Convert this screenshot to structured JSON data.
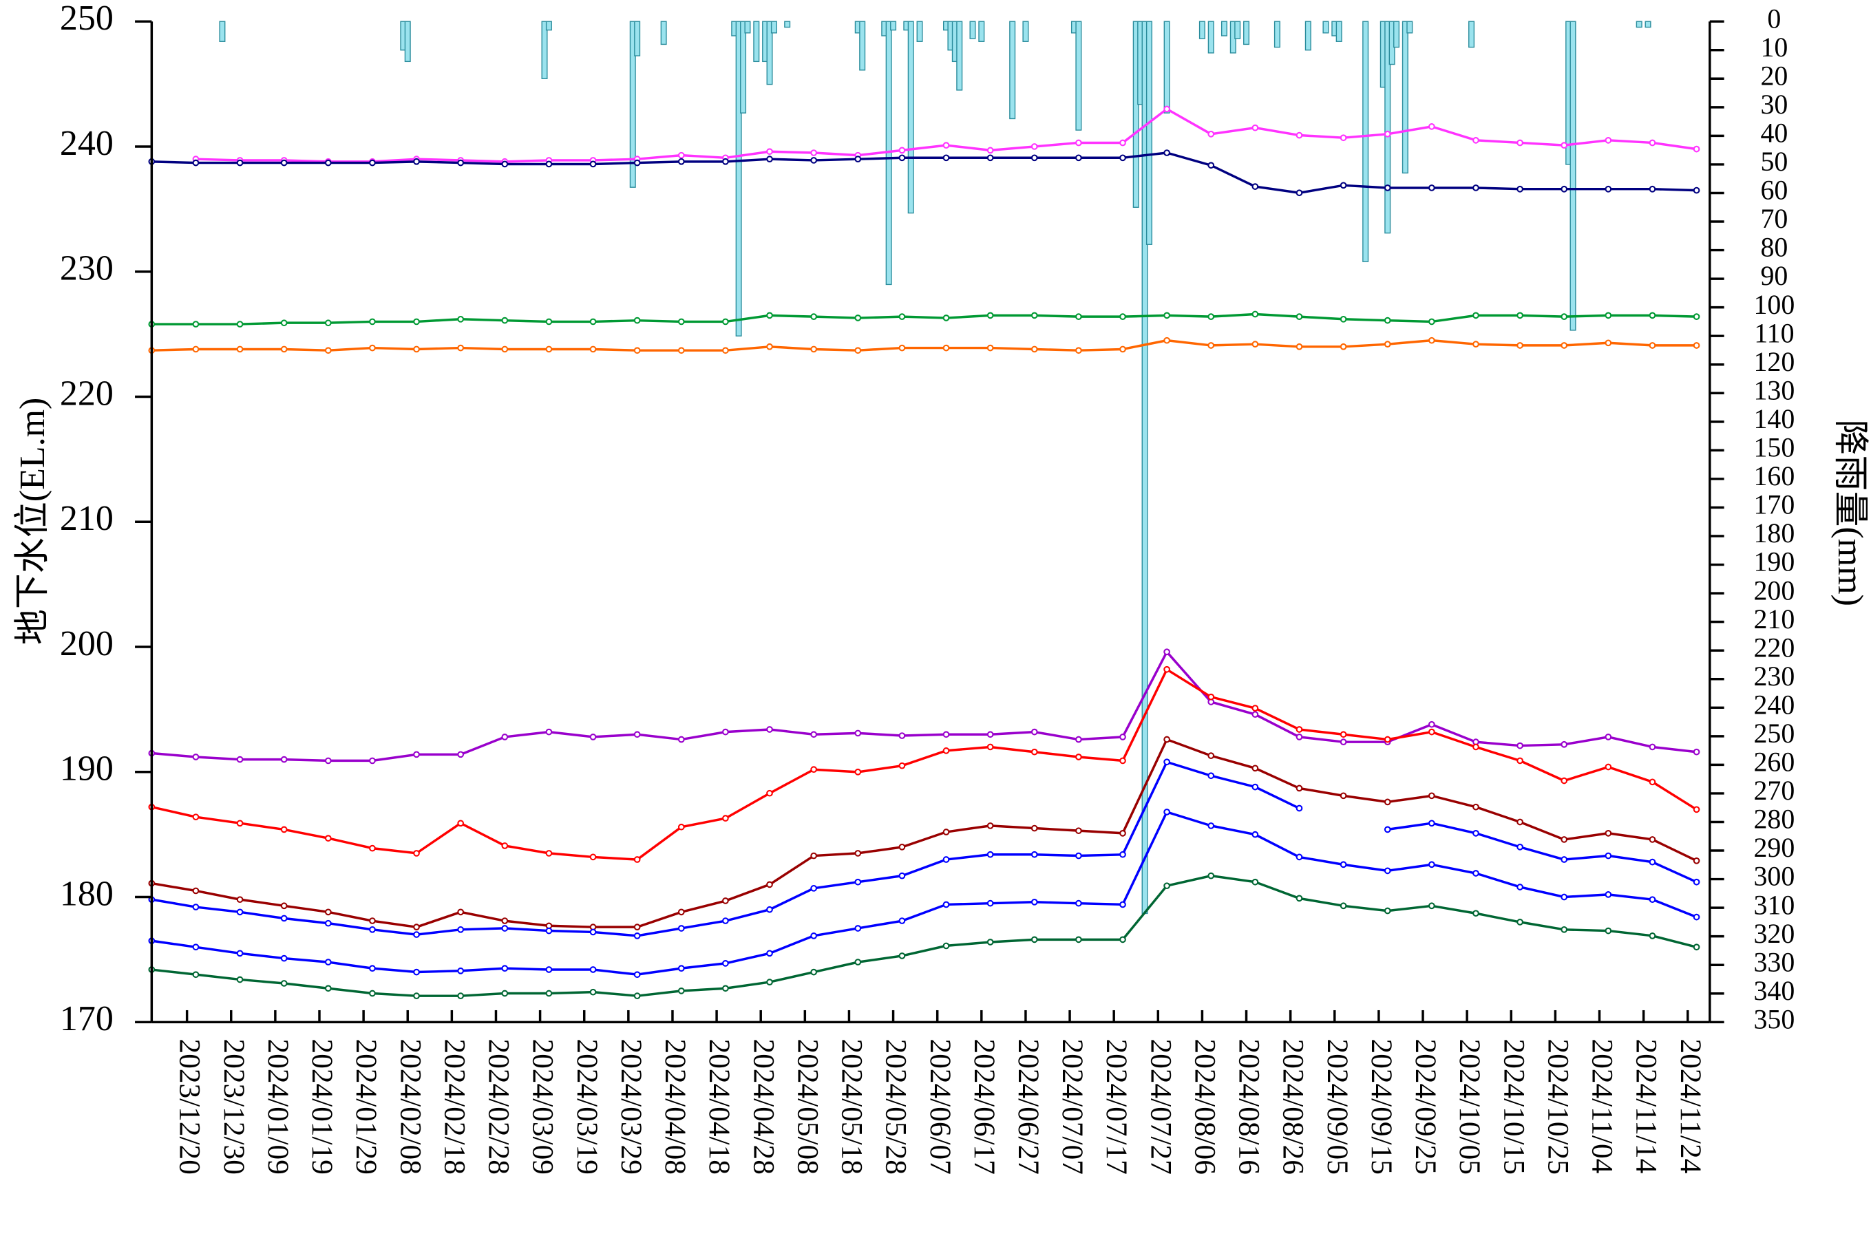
{
  "chart_data": {
    "type": "line",
    "ylabel": "地下水位(EL.m)",
    "y2label": "降雨量(mm)",
    "xlim": [
      "2023/12/12",
      "2024/11/29"
    ],
    "xticks": [
      "2023/12/20",
      "2023/12/30",
      "2024/01/09",
      "2024/01/19",
      "2024/01/29",
      "2024/02/08",
      "2024/02/18",
      "2024/02/28",
      "2024/03/09",
      "2024/03/19",
      "2024/03/29",
      "2024/04/08",
      "2024/04/18",
      "2024/04/28",
      "2024/05/08",
      "2024/05/18",
      "2024/05/28",
      "2024/06/07",
      "2024/06/17",
      "2024/06/27",
      "2024/07/07",
      "2024/07/17",
      "2024/07/27",
      "2024/08/06",
      "2024/08/16",
      "2024/08/26",
      "2024/09/05",
      "2024/09/15",
      "2024/09/25",
      "2024/10/05",
      "2024/10/15",
      "2024/10/25",
      "2024/11/04",
      "2024/11/14",
      "2024/11/24"
    ],
    "ylim": [
      170,
      250
    ],
    "yticks": [
      170,
      180,
      190,
      200,
      210,
      220,
      230,
      240,
      250
    ],
    "y2lim": [
      0,
      350
    ],
    "y2_inverted": true,
    "y2ticks": [
      0,
      10,
      20,
      30,
      40,
      50,
      60,
      70,
      80,
      90,
      100,
      110,
      120,
      130,
      140,
      150,
      160,
      170,
      180,
      190,
      200,
      210,
      220,
      230,
      240,
      250,
      260,
      270,
      280,
      290,
      300,
      310,
      320,
      330,
      340,
      350
    ],
    "x": [
      "2023/12/12",
      "2023/12/22",
      "2024/01/01",
      "2024/01/11",
      "2024/01/21",
      "2024/01/31",
      "2024/02/10",
      "2024/02/20",
      "2024/03/01",
      "2024/03/11",
      "2024/03/21",
      "2024/03/31",
      "2024/04/10",
      "2024/04/20",
      "2024/04/30",
      "2024/05/10",
      "2024/05/20",
      "2024/05/30",
      "2024/06/09",
      "2024/06/19",
      "2024/06/29",
      "2024/07/09",
      "2024/07/19",
      "2024/07/29",
      "2024/08/08",
      "2024/08/18",
      "2024/08/28",
      "2024/09/07",
      "2024/09/17",
      "2024/09/27",
      "2024/10/07",
      "2024/10/17",
      "2024/10/27",
      "2024/11/06",
      "2024/11/16",
      "2024/11/26"
    ],
    "series": [
      {
        "type": "bar",
        "axis": "y2",
        "color": "#9be3ee",
        "x": [
          "2023/12/28",
          "2024/02/07",
          "2024/02/08",
          "2024/03/10",
          "2024/03/11",
          "2024/03/30",
          "2024/03/31",
          "2024/04/06",
          "2024/04/22",
          "2024/04/23",
          "2024/04/24",
          "2024/04/25",
          "2024/04/27",
          "2024/04/29",
          "2024/04/30",
          "2024/05/01",
          "2024/05/04",
          "2024/05/20",
          "2024/05/21",
          "2024/05/26",
          "2024/05/27",
          "2024/05/28",
          "2024/05/31",
          "2024/06/01",
          "2024/06/03",
          "2024/06/09",
          "2024/06/10",
          "2024/06/11",
          "2024/06/12",
          "2024/06/15",
          "2024/06/17",
          "2024/06/24",
          "2024/06/27",
          "2024/07/08",
          "2024/07/09",
          "2024/07/22",
          "2024/07/23",
          "2024/07/24",
          "2024/07/25",
          "2024/07/29",
          "2024/08/06",
          "2024/08/08",
          "2024/08/11",
          "2024/08/13",
          "2024/08/14",
          "2024/08/16",
          "2024/08/23",
          "2024/08/30",
          "2024/09/03",
          "2024/09/05",
          "2024/09/06",
          "2024/09/12",
          "2024/09/16",
          "2024/09/17",
          "2024/09/18",
          "2024/09/19",
          "2024/09/21",
          "2024/09/22",
          "2024/10/06",
          "2024/10/28",
          "2024/10/29",
          "2024/11/13",
          "2024/11/15"
        ],
        "values": [
          7,
          10,
          14,
          20,
          3,
          58,
          12,
          8,
          5,
          110,
          32,
          4,
          14,
          14,
          22,
          4,
          2,
          4,
          17,
          5,
          92,
          3,
          3,
          67,
          7,
          3,
          10,
          14,
          24,
          6,
          7,
          34,
          7,
          4,
          38,
          65,
          29,
          312,
          78,
          32,
          6,
          11,
          5,
          11,
          6,
          8,
          9,
          10,
          4,
          5,
          7,
          84,
          23,
          74,
          15,
          9,
          53,
          4,
          9,
          50,
          108,
          2,
          2
        ]
      },
      {
        "type": "line",
        "color": "#ff33ff",
        "values": [
          null,
          239.0,
          238.9,
          238.9,
          238.8,
          238.8,
          239.0,
          238.9,
          238.8,
          238.9,
          238.9,
          239.0,
          239.3,
          239.1,
          239.6,
          239.5,
          239.3,
          239.7,
          240.1,
          239.7,
          240.0,
          240.3,
          240.3,
          243.0,
          241.0,
          241.5,
          240.9,
          240.7,
          241.0,
          241.6,
          240.5,
          240.3,
          240.1,
          240.5,
          240.3,
          239.8
        ]
      },
      {
        "type": "line",
        "color": "#000080",
        "values": [
          238.8,
          238.7,
          238.7,
          238.7,
          238.7,
          238.7,
          238.8,
          238.7,
          238.6,
          238.6,
          238.6,
          238.7,
          238.8,
          238.8,
          239.0,
          238.9,
          239.0,
          239.1,
          239.1,
          239.1,
          239.1,
          239.1,
          239.1,
          239.5,
          238.5,
          236.8,
          236.3,
          236.9,
          236.7,
          236.7,
          236.7,
          236.6,
          236.6,
          236.6,
          236.6,
          236.5
        ]
      },
      {
        "type": "line",
        "color": "#009933",
        "values": [
          225.8,
          225.8,
          225.8,
          225.9,
          225.9,
          226.0,
          226.0,
          226.2,
          226.1,
          226.0,
          226.0,
          226.1,
          226.0,
          226.0,
          226.5,
          226.4,
          226.3,
          226.4,
          226.3,
          226.5,
          226.5,
          226.4,
          226.4,
          226.5,
          226.4,
          226.6,
          226.4,
          226.2,
          226.1,
          226.0,
          226.5,
          226.5,
          226.4,
          226.5,
          226.5,
          226.4
        ]
      },
      {
        "type": "line",
        "color": "#ff6600",
        "values": [
          223.7,
          223.8,
          223.8,
          223.8,
          223.7,
          223.9,
          223.8,
          223.9,
          223.8,
          223.8,
          223.8,
          223.7,
          223.7,
          223.7,
          224.0,
          223.8,
          223.7,
          223.9,
          223.9,
          223.9,
          223.8,
          223.7,
          223.8,
          224.5,
          224.1,
          224.2,
          224.0,
          224.0,
          224.2,
          224.5,
          224.2,
          224.1,
          224.1,
          224.3,
          224.1,
          224.1
        ]
      },
      {
        "type": "line",
        "color": "#9900cc",
        "values": [
          191.5,
          191.2,
          191.0,
          191.0,
          190.9,
          190.9,
          191.4,
          191.4,
          192.8,
          193.2,
          192.8,
          193.0,
          192.6,
          193.2,
          193.4,
          193.0,
          193.1,
          192.9,
          193.0,
          193.0,
          193.2,
          192.6,
          192.8,
          199.6,
          195.6,
          194.6,
          192.8,
          192.4,
          192.4,
          193.8,
          192.4,
          192.1,
          192.2,
          192.8,
          192.0,
          191.6
        ]
      },
      {
        "type": "line",
        "color": "#ff0000",
        "values": [
          187.2,
          186.4,
          185.9,
          185.4,
          184.7,
          183.9,
          183.5,
          185.9,
          184.1,
          183.5,
          183.2,
          183.0,
          185.6,
          186.3,
          188.3,
          190.2,
          190.0,
          190.5,
          191.7,
          192.0,
          191.6,
          191.2,
          190.9,
          198.2,
          196.0,
          195.1,
          193.4,
          193.0,
          192.6,
          193.2,
          192.0,
          190.9,
          189.3,
          190.4,
          189.2,
          187.0
        ]
      },
      {
        "type": "line",
        "color": "#990000",
        "values": [
          181.1,
          180.5,
          179.8,
          179.3,
          178.8,
          178.1,
          177.6,
          178.8,
          178.1,
          177.7,
          177.6,
          177.6,
          178.8,
          179.7,
          181.0,
          183.3,
          183.5,
          184.0,
          185.2,
          185.7,
          185.5,
          185.3,
          185.1,
          192.6,
          191.3,
          190.3,
          188.7,
          188.1,
          187.6,
          188.1,
          187.2,
          186.0,
          184.6,
          185.1,
          184.6,
          182.9
        ]
      },
      {
        "type": "line",
        "color": "#0000ff",
        "values": [
          179.8,
          179.2,
          178.8,
          178.3,
          177.9,
          177.4,
          177.0,
          177.4,
          177.5,
          177.3,
          177.2,
          176.9,
          177.5,
          178.1,
          179.0,
          180.7,
          181.2,
          181.7,
          183.0,
          183.4,
          183.4,
          183.3,
          183.4,
          190.8,
          189.7,
          188.8,
          187.1,
          null,
          185.4,
          185.9,
          185.1,
          184.0,
          183.0,
          183.3,
          182.8,
          181.2
        ]
      },
      {
        "type": "line",
        "color": "#0000ff",
        "values": [
          176.5,
          176.0,
          175.5,
          175.1,
          174.8,
          174.3,
          174.0,
          174.1,
          174.3,
          174.2,
          174.2,
          173.8,
          174.3,
          174.7,
          175.5,
          176.9,
          177.5,
          178.1,
          179.4,
          179.5,
          179.6,
          179.5,
          179.4,
          186.8,
          185.7,
          185.0,
          183.2,
          182.6,
          182.1,
          182.6,
          181.9,
          180.8,
          180.0,
          180.2,
          179.8,
          178.4
        ]
      },
      {
        "type": "line",
        "color": "#006633",
        "values": [
          174.2,
          173.8,
          173.4,
          173.1,
          172.7,
          172.3,
          172.1,
          172.1,
          172.3,
          172.3,
          172.4,
          172.1,
          172.5,
          172.7,
          173.2,
          174.0,
          174.8,
          175.3,
          176.1,
          176.4,
          176.6,
          176.6,
          176.6,
          180.9,
          181.7,
          181.2,
          179.9,
          179.3,
          178.9,
          179.3,
          178.7,
          178.0,
          177.4,
          177.3,
          176.9,
          176.0
        ]
      }
    ]
  }
}
